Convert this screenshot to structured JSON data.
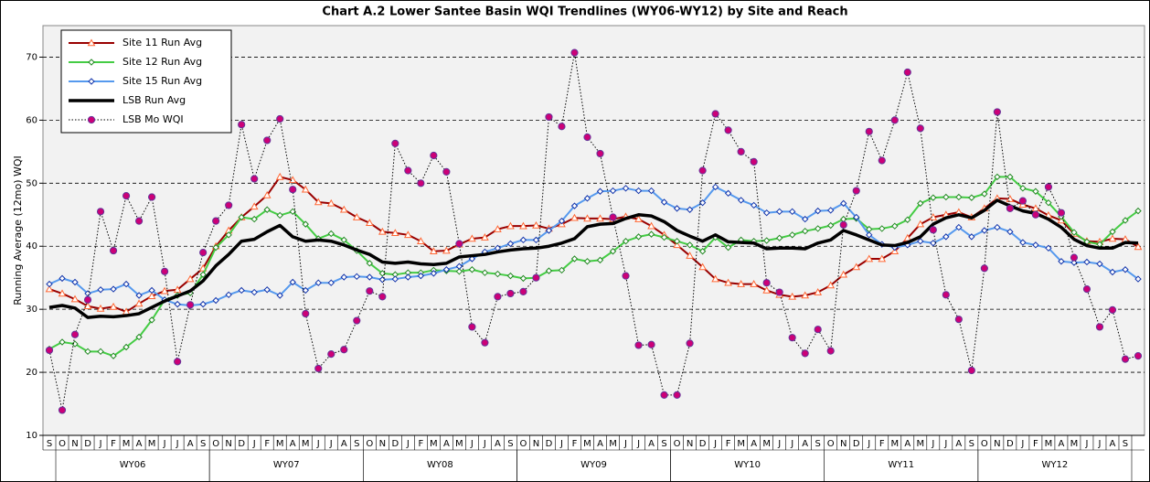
{
  "chart_data": {
    "type": "line",
    "title": "Chart A.2 Lower Santee Basin WQI Trendlines (WY06-WY12) by Site and Reach",
    "y_label": "Running Average (12mo) WQI",
    "categories": [
      "S",
      "O",
      "N",
      "D",
      "J",
      "F",
      "M",
      "A",
      "M",
      "J",
      "J",
      "A",
      "S",
      "O",
      "N",
      "D",
      "J",
      "F",
      "M",
      "A",
      "M",
      "J",
      "J",
      "A",
      "S",
      "O",
      "N",
      "D",
      "J",
      "F",
      "M",
      "A",
      "M",
      "J",
      "J",
      "A",
      "S",
      "O",
      "N",
      "D",
      "J",
      "F",
      "M",
      "A",
      "M",
      "J",
      "J",
      "A",
      "S",
      "O",
      "N",
      "D",
      "J",
      "F",
      "M",
      "A",
      "M",
      "J",
      "J",
      "A",
      "S",
      "O",
      "N",
      "D",
      "J",
      "F",
      "M",
      "A",
      "M",
      "J",
      "J",
      "A",
      "S",
      "O",
      "N",
      "D",
      "J",
      "F",
      "M",
      "A",
      "M",
      "J",
      "J",
      "A",
      "S",
      null
    ],
    "x_groups": [
      "WY06",
      "WY07",
      "WY08",
      "WY09",
      "WY10",
      "WY11",
      "WY12"
    ],
    "ylim": [
      10,
      75
    ],
    "yticks": [
      10,
      20,
      30,
      40,
      50,
      60,
      70
    ],
    "grid": true,
    "legend": "top-left",
    "series": [
      {
        "name": "Site 11 Run Avg",
        "color": "#990000",
        "marker": "triangle",
        "marker_color": "#ff6633",
        "line_style": "solid",
        "values": [
          33.2,
          32.5,
          31.6,
          30.5,
          30.1,
          30.4,
          29.6,
          30.9,
          32.1,
          32.9,
          33.1,
          34.8,
          36.5,
          40,
          42.5,
          44.6,
          46.3,
          48.1,
          51,
          50.5,
          49,
          47,
          46.8,
          45.8,
          44.6,
          43.7,
          42.3,
          42.1,
          41.8,
          40.8,
          39.2,
          39.3,
          40.3,
          41.2,
          41.4,
          42.7,
          43.2,
          43.2,
          43.3,
          42.8,
          43.5,
          44.5,
          44.4,
          44.4,
          44.3,
          44.7,
          44.3,
          43.2,
          41.8,
          40.2,
          38.5,
          36.7,
          34.8,
          34.2,
          34,
          34,
          33,
          32.3,
          32,
          32.2,
          32.7,
          33.8,
          35.5,
          36.7,
          38,
          38,
          39.2,
          41.3,
          43.5,
          44.6,
          45,
          45.4,
          44.6,
          46,
          47.6,
          47.5,
          46.6,
          46,
          44.9,
          44.1,
          42,
          40.8,
          40.7,
          41.2,
          41.1,
          39.9
        ]
      },
      {
        "name": "Site 12 Run Avg",
        "color": "#44cc44",
        "marker": "diamond",
        "marker_color": "#228822",
        "line_style": "solid",
        "values": [
          23.7,
          24.8,
          24.5,
          23.3,
          23.3,
          22.6,
          24,
          25.6,
          28.3,
          31.5,
          32.2,
          32.6,
          35.5,
          39.8,
          41.8,
          44.6,
          44.3,
          45.8,
          44.9,
          45.5,
          43.5,
          41.2,
          42,
          41,
          39.3,
          37.3,
          35.7,
          35.5,
          35.8,
          35.8,
          36.2,
          36.1,
          36,
          36.3,
          35.8,
          35.6,
          35.3,
          34.9,
          35,
          36.1,
          36.2,
          38,
          37.6,
          37.8,
          39.2,
          40.8,
          41.5,
          41.9,
          41.4,
          40.8,
          40.2,
          39.2,
          41.4,
          39.8,
          41,
          40.8,
          40.9,
          41.3,
          41.8,
          42.4,
          42.8,
          43.3,
          44.3,
          44.4,
          42.7,
          42.8,
          43.2,
          44.2,
          46.8,
          47.7,
          47.8,
          47.8,
          47.7,
          48.3,
          51,
          51,
          49.2,
          48.7,
          46.9,
          44.7,
          42.2,
          40.7,
          40.3,
          42.3,
          44.1,
          45.6
        ]
      },
      {
        "name": "Site 15 Run Avg",
        "color": "#5599ee",
        "marker": "diamond",
        "marker_color": "#1133aa",
        "line_style": "solid",
        "values": [
          34,
          34.9,
          34.3,
          32.5,
          33.1,
          33.2,
          34,
          32.2,
          33,
          31.5,
          30.8,
          30.6,
          30.8,
          31.4,
          32.3,
          33,
          32.7,
          33.1,
          32.2,
          34.3,
          33,
          34.2,
          34.2,
          35.1,
          35.2,
          35.1,
          34.7,
          34.8,
          35.1,
          35.3,
          35.7,
          36.3,
          36.8,
          38,
          39.1,
          39.7,
          40.4,
          41,
          41,
          42.5,
          44,
          46.4,
          47.6,
          48.7,
          48.8,
          49.2,
          48.8,
          48.8,
          47,
          46,
          45.8,
          46.9,
          49.4,
          48.4,
          47.3,
          46.5,
          45.3,
          45.5,
          45.5,
          44.3,
          45.6,
          45.7,
          46.8,
          44.6,
          41.8,
          40.3,
          39.8,
          40.2,
          40.8,
          40.5,
          41.5,
          43,
          41.5,
          42.5,
          43,
          42.3,
          40.6,
          40.2,
          39.7,
          37.6,
          37.4,
          37.5,
          37.2,
          35.9,
          36.3,
          34.8
        ]
      },
      {
        "name": "LSB Run Avg",
        "color": "#000000",
        "marker": "none",
        "line_style": "thick",
        "values": [
          30.3,
          30.6,
          30.2,
          28.7,
          28.9,
          28.8,
          29,
          29.3,
          30.3,
          31.3,
          32.1,
          32.9,
          34.5,
          36.9,
          38.7,
          40.8,
          41.1,
          42.3,
          43.3,
          41.5,
          40.8,
          41,
          40.8,
          40.2,
          39.4,
          38.7,
          37.5,
          37.3,
          37.5,
          37.2,
          37.1,
          37.3,
          38.3,
          38.5,
          38.7,
          39.1,
          39.4,
          39.6,
          39.7,
          40,
          40.5,
          41.2,
          43.1,
          43.5,
          43.6,
          44.4,
          45,
          44.8,
          43.9,
          42.5,
          41.6,
          40.8,
          41.8,
          40.7,
          40.6,
          40.5,
          39.6,
          39.7,
          39.7,
          39.6,
          40.5,
          41,
          42.5,
          41.8,
          41,
          40.2,
          40.1,
          40.6,
          41.5,
          43.5,
          44.5,
          45,
          44.5,
          45.7,
          47.3,
          46.4,
          45.6,
          45.2,
          44.3,
          43,
          41.1,
          40.1,
          39.7,
          39.7,
          40.6,
          40.5
        ]
      },
      {
        "name": "LSB Mo WQI",
        "color": "#000000",
        "marker": "circle",
        "marker_color": "#cc0077",
        "line_style": "dotted",
        "values": [
          23.5,
          14,
          26,
          31.5,
          45.5,
          39.3,
          48,
          44,
          47.8,
          36,
          21.7,
          30.7,
          39,
          44,
          46.5,
          59.3,
          50.7,
          56.8,
          60.2,
          49,
          29.3,
          20.6,
          22.9,
          23.6,
          28.2,
          32.9,
          32,
          56.3,
          52,
          50,
          54.4,
          51.8,
          40.4,
          27.2,
          24.7,
          32,
          32.5,
          32.8,
          35,
          60.5,
          59,
          70.7,
          57.3,
          54.7,
          44.6,
          35.3,
          24.3,
          24.4,
          16.4,
          16.4,
          24.6,
          52,
          61,
          58.4,
          55,
          53.4,
          34.2,
          32.7,
          25.5,
          23,
          26.8,
          23.4,
          43.4,
          48.8,
          58.2,
          53.6,
          60,
          67.6,
          58.7,
          42.6,
          32.3,
          28.4,
          20.3,
          36.5,
          61.3,
          46,
          47.2,
          45,
          49.4,
          45.3,
          38.2,
          33.2,
          27.2,
          29.9,
          22.1,
          22.6
        ]
      }
    ]
  }
}
